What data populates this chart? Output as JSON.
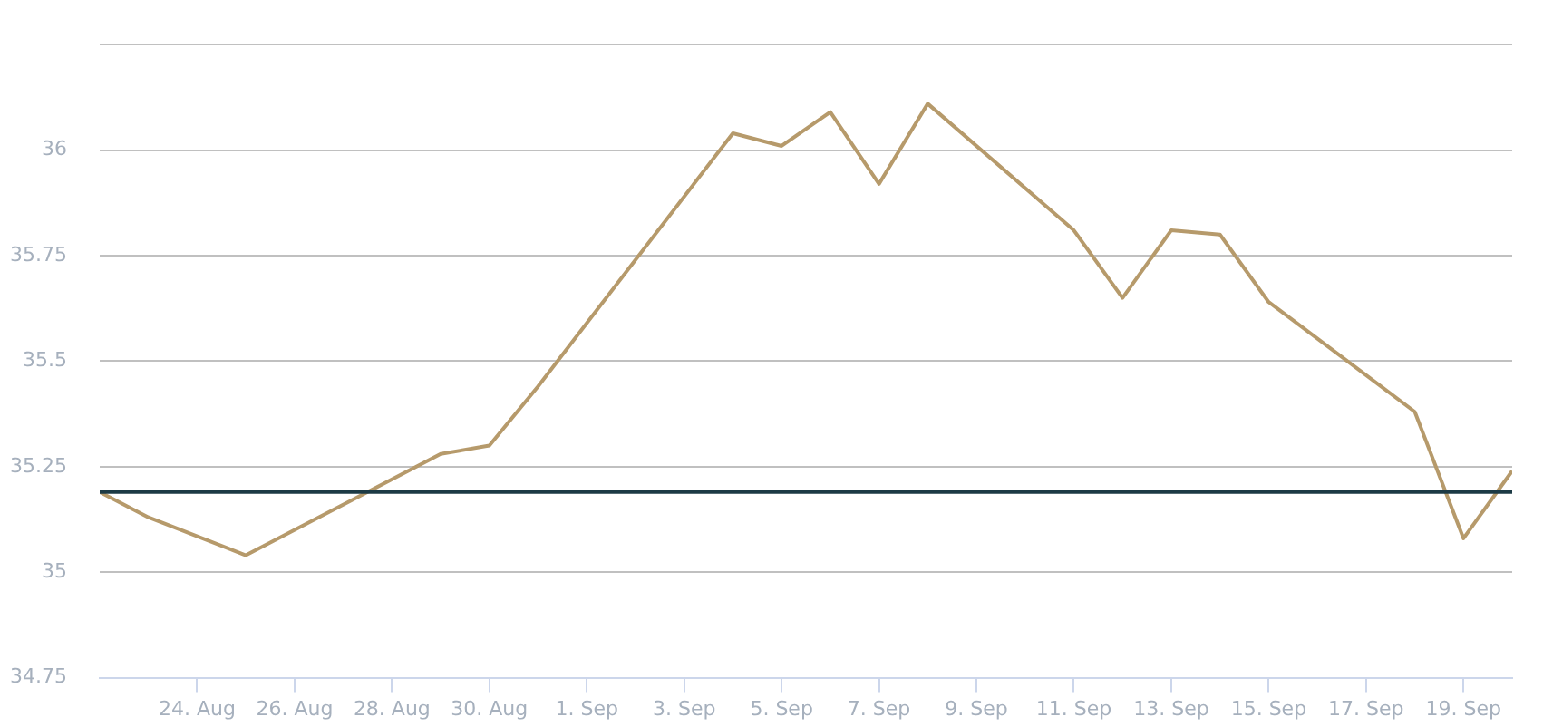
{
  "chart_data": {
    "type": "line",
    "x": [
      "--08-22",
      "--08-23",
      "--08-25",
      "--08-29",
      "--08-30",
      "--08-31",
      "--09-04",
      "--09-05",
      "--09-06",
      "--09-07",
      "--09-08",
      "--09-11",
      "--09-12",
      "--09-13",
      "--09-14",
      "--09-15",
      "--09-18",
      "--09-19",
      "--09-20"
    ],
    "series": [
      {
        "color": "#b69a6b",
        "values": [
          35.19,
          35.13,
          35.04,
          35.28,
          35.3,
          35.44,
          36.04,
          36.01,
          36.09,
          35.92,
          36.11,
          35.81,
          35.65,
          35.81,
          35.8,
          35.64,
          35.38,
          35.08,
          35.24
        ]
      }
    ],
    "xlim": [
      "--08-22",
      "--09-20"
    ],
    "xticks": [
      {
        "value": "--08-24",
        "label": "24. Aug"
      },
      {
        "value": "--08-26",
        "label": "26. Aug"
      },
      {
        "value": "--08-28",
        "label": "28. Aug"
      },
      {
        "value": "--08-30",
        "label": "30. Aug"
      },
      {
        "value": "--09-01",
        "label": "1. Sep"
      },
      {
        "value": "--09-03",
        "label": "3. Sep"
      },
      {
        "value": "--09-05",
        "label": "5. Sep"
      },
      {
        "value": "--09-07",
        "label": "7. Sep"
      },
      {
        "value": "--09-09",
        "label": "9. Sep"
      },
      {
        "value": "--09-11",
        "label": "11. Sep"
      },
      {
        "value": "--09-13",
        "label": "13. Sep"
      },
      {
        "value": "--09-15",
        "label": "15. Sep"
      },
      {
        "value": "--09-17",
        "label": "17. Sep"
      },
      {
        "value": "--09-19",
        "label": "19. Sep"
      }
    ],
    "ylim": [
      34.75,
      36.25
    ],
    "yticks": [
      34.75,
      35,
      35.25,
      35.5,
      35.75,
      36,
      {
        "value": 36.25,
        "label": null
      }
    ],
    "ref_lines": [
      {
        "axis": "y",
        "value": 35.19,
        "color": "#1c3a45"
      }
    ],
    "grid": "y",
    "legend": false,
    "marker": "none",
    "line_style": "solid"
  }
}
